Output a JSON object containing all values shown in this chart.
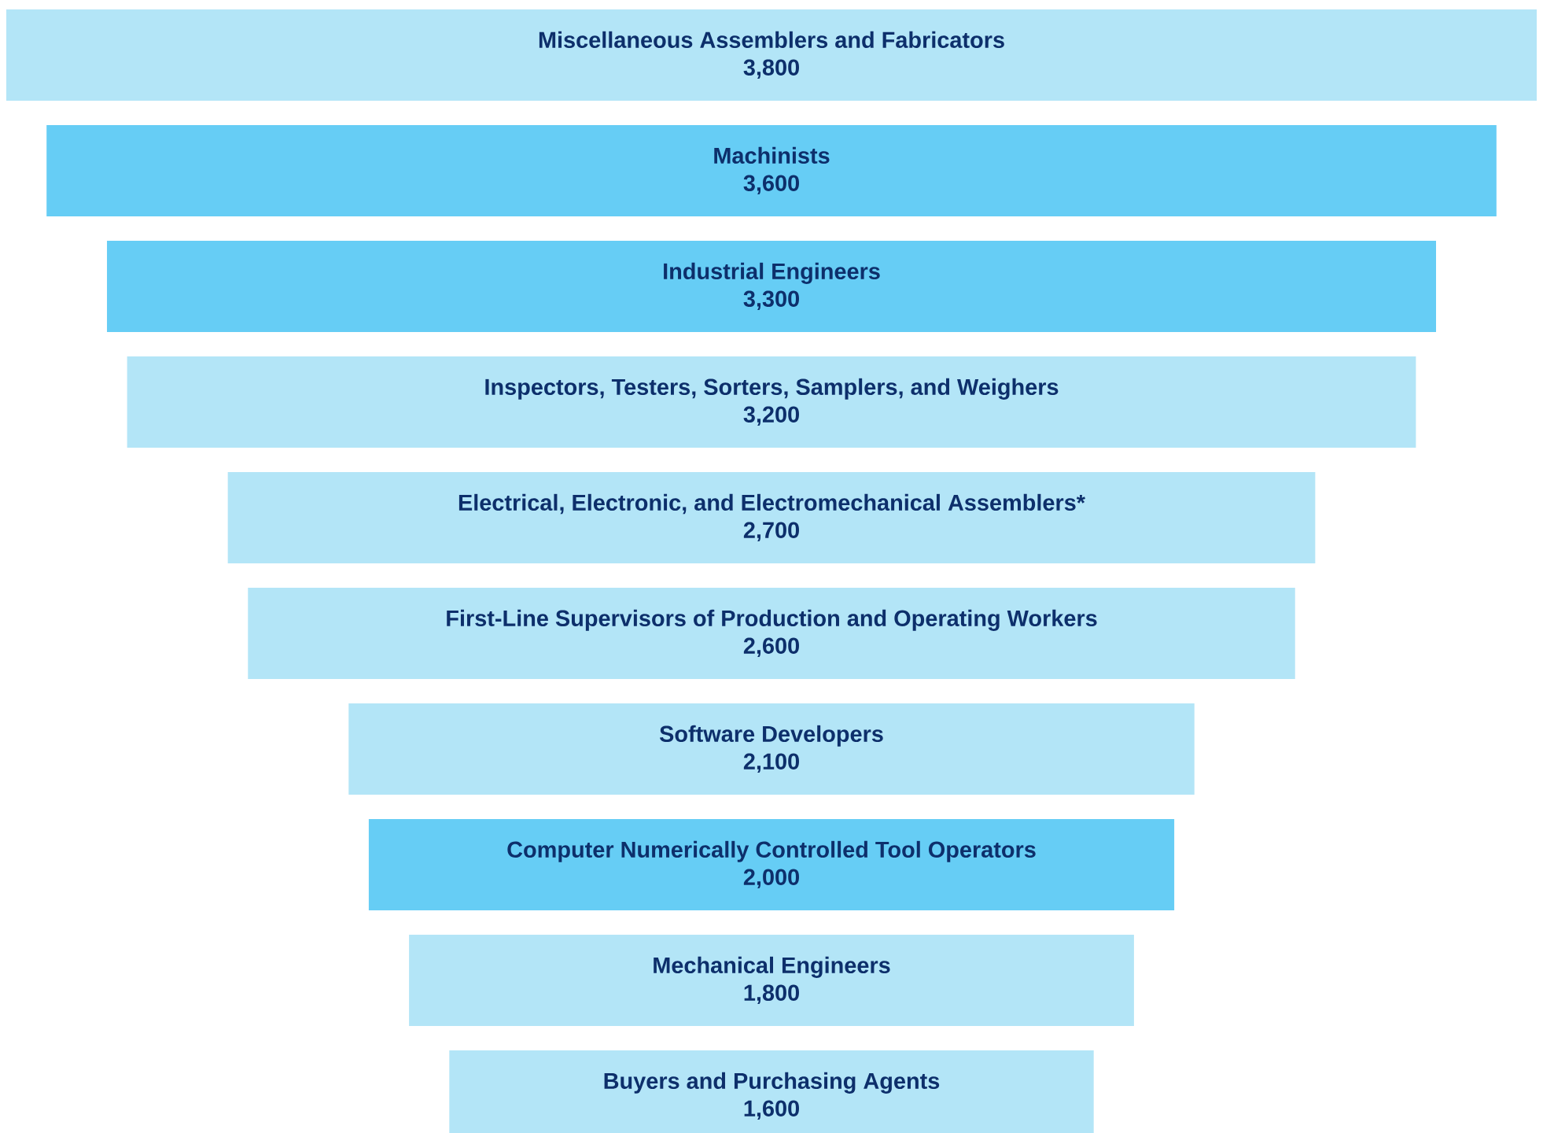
{
  "chart_data": {
    "type": "other",
    "categories": [
      "Miscellaneous Assemblers and Fabricators",
      "Machinists",
      "Industrial Engineers",
      "Inspectors, Testers, Sorters, Samplers, and Weighers",
      "Electrical, Electronic, and Electromechanical Assemblers*",
      "First-Line Supervisors of Production and Operating Workers",
      "Software Developers",
      "Computer Numerically Controlled Tool Operators",
      "Mechanical Engineers",
      "Buyers and Purchasing Agents"
    ],
    "values": [
      3800,
      3600,
      3300,
      3200,
      2700,
      2600,
      2100,
      2000,
      1800,
      1600
    ],
    "value_labels": [
      "3,800",
      "3,600",
      "3,300",
      "3,200",
      "2,700",
      "2,600",
      "2,100",
      "2,000",
      "1,800",
      "1,600"
    ],
    "colors": [
      "#b3e5f7",
      "#66cdf5",
      "#66cdf5",
      "#b3e5f7",
      "#b3e5f7",
      "#b3e5f7",
      "#b3e5f7",
      "#66cdf5",
      "#b3e5f7",
      "#b3e5f7"
    ]
  }
}
